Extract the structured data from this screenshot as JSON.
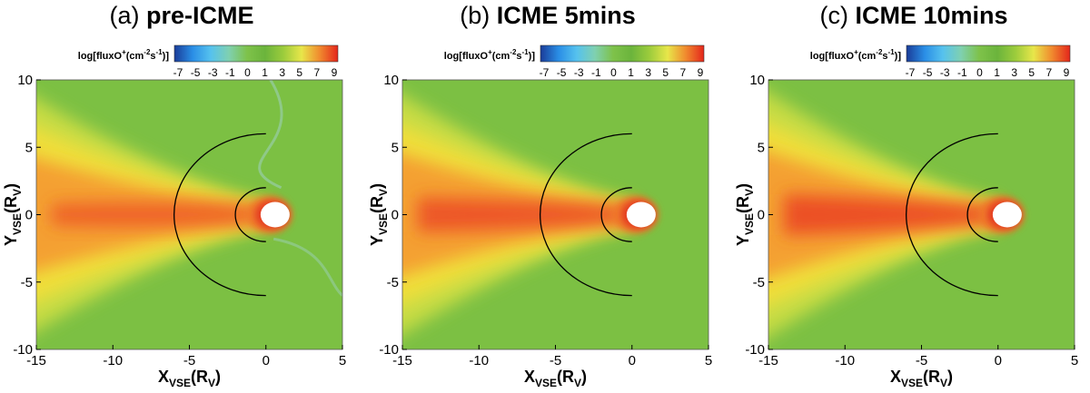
{
  "panels": [
    {
      "title_label": "(a)",
      "title_text": "pre-ICME",
      "core": 0.5,
      "wing": 0.7
    },
    {
      "title_label": "(b)",
      "title_text": "ICME 5mins",
      "core": 0.8,
      "wing": 0.85
    },
    {
      "title_label": "(c)",
      "title_text": "ICME 10mins",
      "core": 0.95,
      "wing": 0.95
    }
  ],
  "colorbar": {
    "label_main": "log[fluxO",
    "label_sup1": "+",
    "label_mid": "(cm",
    "label_sup2": "-2",
    "label_mid2": "s",
    "label_sup3": "-1",
    "label_end": ")]",
    "ticks": [
      "-7",
      "-5",
      "-3",
      "-1",
      "0",
      "1",
      "3",
      "5",
      "7",
      "9"
    ],
    "colors": [
      "#1a3c98",
      "#2a8ee6",
      "#56c2ee",
      "#7fd0b0",
      "#7ec24a",
      "#6bb43c",
      "#9ccc3c",
      "#e8e64a",
      "#f08a2e",
      "#e4261c"
    ]
  },
  "chart_data": {
    "type": "heatmap",
    "quantity": "log[fluxO+(cm-2 s-1)]",
    "xlabel": "XVSE(RV)",
    "ylabel": "YVSE(RV)",
    "xlim": [
      -15,
      5
    ],
    "ylim": [
      -10,
      10
    ],
    "x_ticks": [
      "-15",
      "-10",
      "-5",
      "0",
      "5"
    ],
    "y_ticks": [
      "10",
      "5",
      "0",
      "-5",
      "-10"
    ],
    "colorbar_range": [
      -7,
      9
    ],
    "annotations": [
      "semicircle r=6 RV centered at origin",
      "semicircle r=2 RV centered at origin"
    ]
  },
  "axis": {
    "x_main": "X",
    "x_sub": "VSE",
    "x_unit_open": "(R",
    "x_unit_sub": "V",
    "x_unit_close": ")",
    "y_main": "Y",
    "y_sub": "VSE",
    "y_unit_open": "(R",
    "y_unit_sub": "V",
    "y_unit_close": ")"
  }
}
